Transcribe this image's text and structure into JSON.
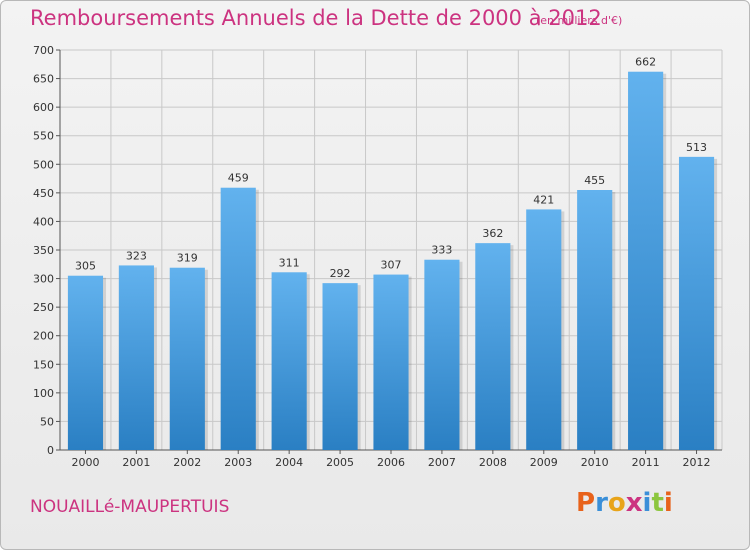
{
  "header": {
    "title": "Remboursements Annuels de la Dette de 2000 à 2012",
    "unit": "(en milliers d'€)"
  },
  "footer": {
    "commune": "NOUAILLé-MAUPERTUIS",
    "logo_text": "Proxiti"
  },
  "colors": {
    "title": "#cc3380",
    "bar_top": "#62b2ee",
    "bar_bottom": "#2a7fc3",
    "grid": "#c8c8c8",
    "logo_letters": [
      "#e8621a",
      "#3a8fd8",
      "#e8a41a",
      "#cc3380",
      "#3a8fd8",
      "#8cc63e",
      "#e8621a"
    ]
  },
  "chart_data": {
    "type": "bar",
    "title": "Remboursements Annuels de la Dette de 2000 à 2012",
    "xlabel": "",
    "ylabel": "",
    "categories": [
      "2000",
      "2001",
      "2002",
      "2003",
      "2004",
      "2005",
      "2006",
      "2007",
      "2008",
      "2009",
      "2010",
      "2011",
      "2012"
    ],
    "values": [
      305,
      323,
      319,
      459,
      311,
      292,
      307,
      333,
      362,
      421,
      455,
      662,
      513
    ],
    "ylim": [
      0,
      700
    ],
    "yticks": [
      0,
      50,
      100,
      150,
      200,
      250,
      300,
      350,
      400,
      450,
      500,
      550,
      600,
      650,
      700
    ],
    "grid": true,
    "legend": "none"
  }
}
